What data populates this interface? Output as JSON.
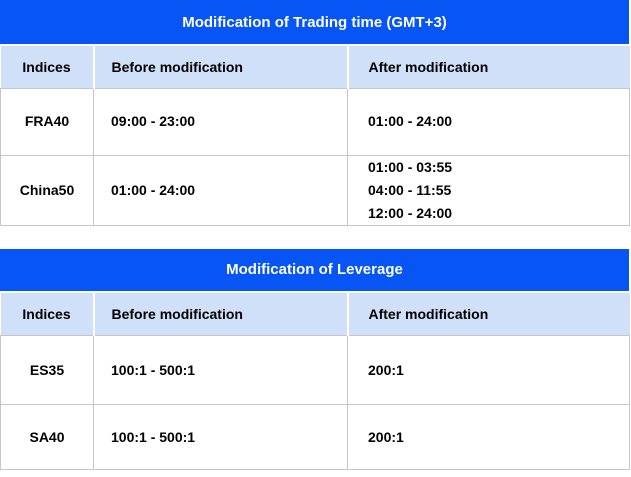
{
  "colors": {
    "title_bar_bg": "#0755F4",
    "title_bar_text": "#FFFFFF",
    "header_row_bg": "#D0E0F8",
    "grid_border": "#C6C6C6",
    "body_text": "#000000"
  },
  "tables": [
    {
      "title": "Modification of Trading time (GMT+3)",
      "columns": [
        "Indices",
        "Before modification",
        "After modification"
      ],
      "rows": [
        {
          "index": "FRA40",
          "before": "09:00 - 23:00",
          "after": "01:00 - 24:00"
        },
        {
          "index": "China50",
          "before": "01:00 - 24:00",
          "after": "01:00 - 03:55\n04:00 - 11:55\n12:00 - 24:00"
        }
      ]
    },
    {
      "title": "Modification of Leverage",
      "columns": [
        "Indices",
        "Before modification",
        "After modification"
      ],
      "rows": [
        {
          "index": "ES35",
          "before": "100:1 - 500:1",
          "after": "200:1"
        },
        {
          "index": "SA40",
          "before": "100:1 - 500:1",
          "after": "200:1"
        }
      ]
    }
  ]
}
